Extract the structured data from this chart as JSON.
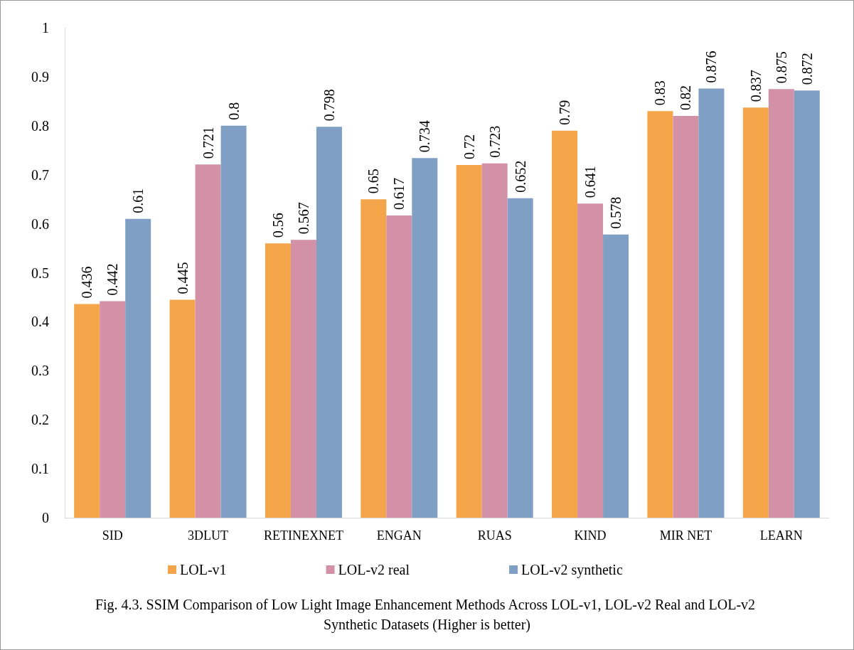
{
  "chart_data": {
    "type": "bar",
    "title": "Fig. 4.3. SSIM Comparison of Low Light Image Enhancement Methods Across LOL-v1, LOL-v2 Real and LOL-v2 Synthetic Datasets (Higher is better)",
    "categories": [
      "SID",
      "3DLUT",
      "RETINEXNET",
      "ENGAN",
      "RUAS",
      "KIND",
      "MIR NET",
      "LEARN"
    ],
    "series": [
      {
        "name": "LOL-v1",
        "color": "#f4a54a",
        "values": [
          0.436,
          0.445,
          0.56,
          0.65,
          0.72,
          0.79,
          0.83,
          0.837
        ]
      },
      {
        "name": "LOL-v2 real",
        "color": "#d291a6",
        "values": [
          0.442,
          0.721,
          0.567,
          0.617,
          0.723,
          0.641,
          0.82,
          0.875
        ]
      },
      {
        "name": "LOL-v2 synthetic",
        "color": "#7f9fc5",
        "values": [
          0.61,
          0.8,
          0.798,
          0.734,
          0.652,
          0.578,
          0.876,
          0.872
        ]
      }
    ],
    "ylim": [
      0,
      1
    ],
    "yticks": [
      0,
      0.1,
      0.2,
      0.3,
      0.4,
      0.5,
      0.6,
      0.7,
      0.8,
      0.9,
      1
    ],
    "data_labels": true,
    "grid": false,
    "legend": "bottom"
  }
}
